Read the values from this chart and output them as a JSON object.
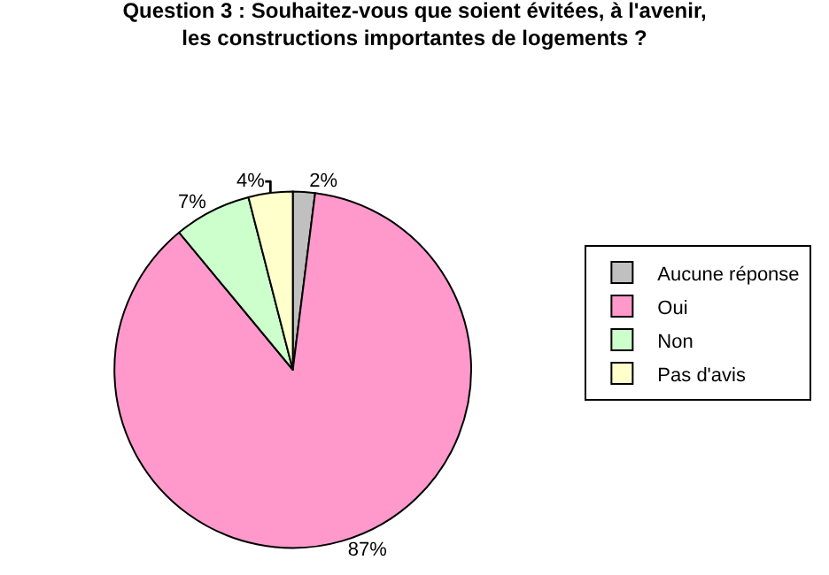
{
  "chart_data": {
    "type": "pie",
    "title": "Question 3 : Souhaitez-vous que soient évitées, à l'avenir, les constructions importantes de logements ?",
    "categories": [
      "Aucune réponse",
      "Oui",
      "Non",
      "Pas d'avis"
    ],
    "values": [
      2,
      87,
      7,
      4
    ],
    "colors": [
      "#c0c0c0",
      "#ff99cc",
      "#ccffcc",
      "#ffffcc"
    ],
    "value_labels": [
      "2%",
      "87%",
      "7%",
      "4%"
    ],
    "legend": "right"
  }
}
